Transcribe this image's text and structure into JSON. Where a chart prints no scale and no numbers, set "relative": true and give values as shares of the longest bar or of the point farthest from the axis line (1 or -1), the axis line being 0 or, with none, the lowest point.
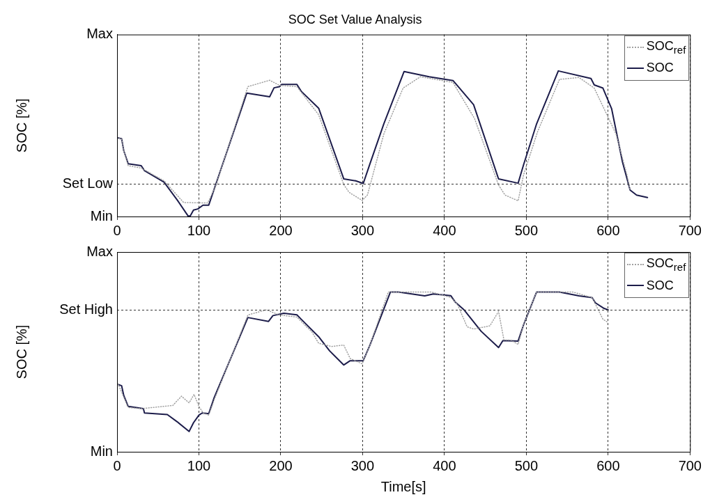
{
  "chart_data": [
    {
      "type": "line",
      "title": "SOC Set Value Analysis",
      "ylabel": "SOC [%]",
      "relative": true,
      "xlim": [
        0,
        700
      ],
      "xticks": [
        0,
        100,
        200,
        300,
        400,
        500,
        600,
        700
      ],
      "grid": "x",
      "legend": "top right",
      "marker": "none",
      "annotations": [
        "Min",
        "Max"
      ],
      "ref_lines": [
        {
          "axis": "y",
          "value": 0.227,
          "label": "Set Low"
        }
      ],
      "series": [
        {
          "name": "SOC$_{ref}$",
          "color": "#a0a0a0",
          "line_style": "dotted",
          "x": [
            0,
            5.6,
            8.2,
            13.6,
            29.5,
            57.4,
            81.4,
            110.6,
            120,
            159.8,
            186.4,
            198.4,
            219.7,
            246.3,
            277,
            283.5,
            299.5,
            306,
            326,
            349.4,
            370.6,
            410.4,
            436.9,
            466.1,
            474,
            490,
            496.7,
            513.9,
            540.5,
            564.4,
            583,
            609.6,
            622.9,
            626.8
          ],
          "values": [
            0.542,
            0.534,
            0.452,
            0.349,
            0.333,
            0.245,
            0.096,
            0.093,
            0.201,
            0.892,
            0.936,
            0.901,
            0.892,
            0.699,
            0.219,
            0.166,
            0.11,
            0.149,
            0.568,
            0.882,
            0.96,
            0.921,
            0.671,
            0.216,
            0.147,
            0.108,
            0.288,
            0.584,
            0.942,
            0.955,
            0.882,
            0.567,
            0.288,
            0.182
          ]
        },
        {
          "name": "SOC",
          "color": "#1c1c4a",
          "line_style": "solid",
          "x": [
            0,
            5.6,
            8.2,
            13.6,
            29.5,
            33.5,
            57.4,
            73.4,
            86.7,
            89.4,
            93.4,
            98.7,
            105,
            112,
            120,
            158.5,
            186.4,
            191.8,
            198.4,
            201,
            219.7,
            225,
            246.3,
            277,
            291.5,
            300.8,
            308.8,
            326,
            350.7,
            381.2,
            410.4,
            417.7,
            435.6,
            466.1,
            490,
            496.7,
            512.6,
            539.1,
            579,
            583,
            593.6,
            604.2,
            617.5,
            626.8,
            634.7,
            648
          ],
          "values": [
            0.542,
            0.534,
            0.452,
            0.362,
            0.349,
            0.315,
            0.236,
            0.114,
            0.004,
            0.004,
            0.044,
            0.052,
            0.078,
            0.078,
            0.21,
            0.848,
            0.822,
            0.884,
            0.892,
            0.907,
            0.907,
            0.86,
            0.744,
            0.258,
            0.245,
            0.227,
            0.359,
            0.638,
            0.996,
            0.96,
            0.934,
            0.886,
            0.768,
            0.258,
            0.229,
            0.356,
            0.637,
            1,
            0.948,
            0.904,
            0.882,
            0.741,
            0.374,
            0.182,
            0.147,
            0.13
          ]
        }
      ]
    },
    {
      "type": "line",
      "xlabel": "Time[s]",
      "ylabel": "SOC [%]",
      "relative": true,
      "xlim": [
        0,
        700
      ],
      "xticks": [
        0,
        100,
        200,
        300,
        400,
        500,
        600,
        700
      ],
      "grid": "x",
      "legend": "top right",
      "marker": "none",
      "annotations": [
        "Min",
        "Max"
      ],
      "ref_lines": [
        {
          "axis": "y",
          "value": 0.888,
          "label": "Set High"
        }
      ],
      "series": [
        {
          "name": "SOC$_{ref}$",
          "color": "#a0a0a0",
          "line_style": "dotted",
          "x": [
            0,
            13.6,
            29.5,
            68.1,
            78.7,
            88,
            94.1,
            100,
            105.3,
            112,
            118.6,
            159.8,
            182.4,
            198.4,
            219.7,
            238.3,
            246.3,
            262.2,
            276.9,
            284.8,
            299.5,
            308.8,
            331.4,
            344,
            383.8,
            407.7,
            415.7,
            427.7,
            435.6,
            455.5,
            466.1,
            472.7,
            480.7,
            490,
            496.7,
            512.6,
            556.4,
            580.4,
            585.7,
            593.6,
            600
          ],
          "values": [
            0.44,
            0.277,
            0.27,
            0.29,
            0.348,
            0.306,
            0.359,
            0.284,
            0.243,
            0.229,
            0.324,
            0.856,
            0.888,
            0.856,
            0.843,
            0.748,
            0.679,
            0.659,
            0.668,
            0.584,
            0.55,
            0.666,
            1,
            1,
            1,
            0.966,
            0.924,
            0.782,
            0.768,
            0.788,
            0.878,
            0.699,
            0.699,
            0.672,
            0.795,
            1,
            1,
            0.965,
            0.911,
            0.829,
            0.809
          ]
        },
        {
          "name": "SOC",
          "color": "#1c1c4a",
          "line_style": "solid",
          "x": [
            0,
            5.6,
            8.2,
            13.6,
            32.2,
            33.5,
            61.4,
            73.4,
            88,
            93.4,
            100,
            104,
            112,
            118.6,
            159.8,
            185.1,
            190.4,
            203.7,
            219.7,
            225,
            246.3,
            259.6,
            276.9,
            284.8,
            300.8,
            308.8,
            334,
            344,
            375.9,
            386.5,
            407.7,
            413,
            423.6,
            444.8,
            466.1,
            471.4,
            490,
            496.7,
            512.6,
            540.5,
            564.4,
            580.4,
            584.4,
            595,
            600
          ],
          "values": [
            0.424,
            0.413,
            0.352,
            0.284,
            0.27,
            0.243,
            0.233,
            0.188,
            0.127,
            0.182,
            0.229,
            0.243,
            0.238,
            0.338,
            0.84,
            0.816,
            0.852,
            0.867,
            0.857,
            0.829,
            0.72,
            0.632,
            0.543,
            0.57,
            0.57,
            0.666,
            1,
            1,
            0.976,
            0.988,
            0.977,
            0.938,
            0.89,
            0.754,
            0.652,
            0.696,
            0.693,
            0.795,
            1,
            1,
            0.976,
            0.965,
            0.932,
            0.897,
            0.888
          ]
        }
      ]
    }
  ]
}
